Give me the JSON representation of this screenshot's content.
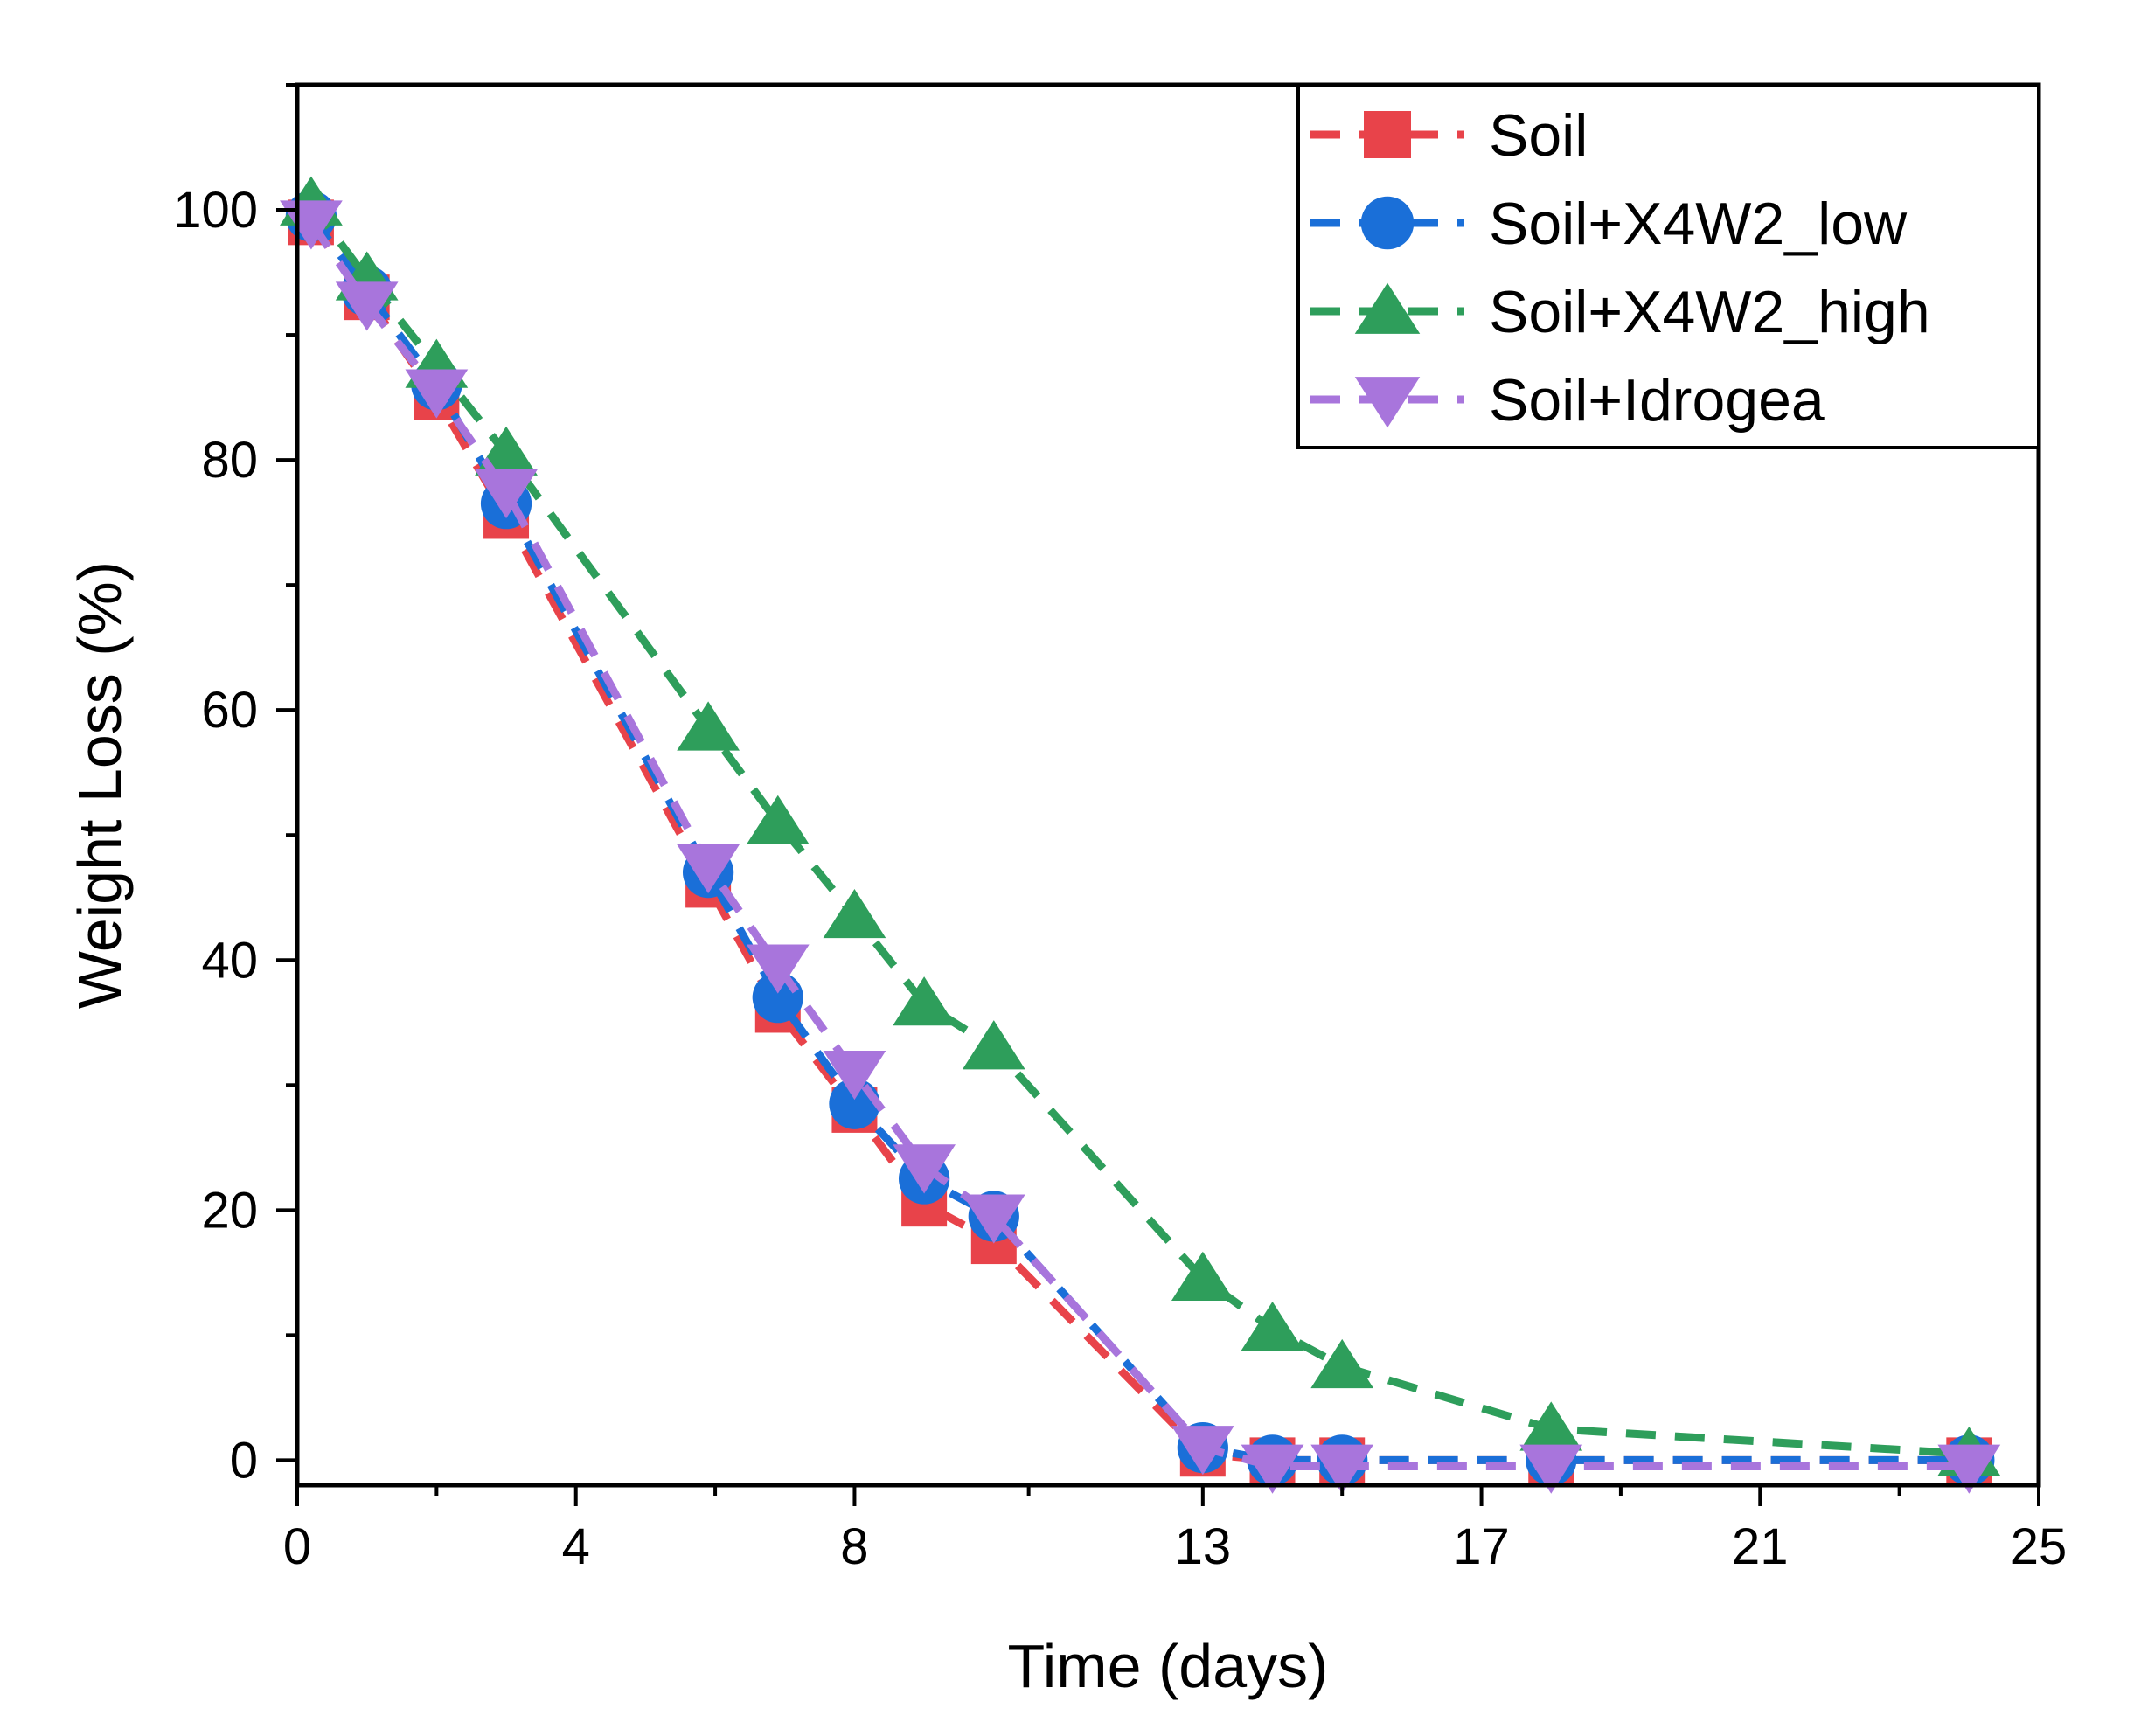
{
  "chart_data": {
    "type": "line",
    "title": "",
    "xlabel": "Time (days)",
    "ylabel": "Weight Loss (%)",
    "xlim": [
      0,
      25
    ],
    "ylim": [
      -2,
      110
    ],
    "x_ticks": [
      0,
      4,
      8,
      13,
      17,
      21,
      25
    ],
    "y_ticks": [
      0,
      20,
      40,
      60,
      80,
      100
    ],
    "grid": false,
    "legend_position": "top-right",
    "series": [
      {
        "name": "Soil",
        "color": "#e8434a",
        "marker": "square",
        "x": [
          0.2,
          1,
          2,
          3,
          5.9,
          6.9,
          8,
          9,
          10,
          13.0,
          14.0,
          15.0,
          18.0,
          24.0
        ],
        "y": [
          99,
          93,
          85,
          75.5,
          46,
          36,
          28,
          20.5,
          17.5,
          0.5,
          0,
          0,
          0,
          0
        ]
      },
      {
        "name": "Soil+X4W2_low",
        "color": "#1a6fd8",
        "marker": "circle",
        "x": [
          0.2,
          1,
          2,
          3,
          5.9,
          6.9,
          8,
          9,
          10,
          13.0,
          14.0,
          15.0,
          18.0,
          24.0
        ],
        "y": [
          99.5,
          93.5,
          86,
          76.5,
          47,
          37,
          28.5,
          22.5,
          19.5,
          1,
          0,
          0,
          0,
          0
        ]
      },
      {
        "name": "Soil+X4W2_high",
        "color": "#2e9e5b",
        "marker": "triangle-up",
        "x": [
          0.2,
          1,
          2,
          3,
          5.9,
          6.9,
          8,
          9,
          10,
          13.0,
          14.0,
          15.0,
          18.0,
          24.0
        ],
        "y": [
          100.5,
          94.5,
          87.5,
          80.5,
          58.5,
          51,
          43.5,
          36.5,
          33,
          14.5,
          10.5,
          7.5,
          2.5,
          0.5
        ]
      },
      {
        "name": "Soil+Idrogea",
        "color": "#a875dc",
        "marker": "triangle-down",
        "x": [
          0.2,
          1,
          2,
          3,
          5.9,
          6.9,
          8,
          9,
          10,
          13.0,
          14.0,
          15.0,
          18.0,
          24.0
        ],
        "y": [
          99,
          92.5,
          85.5,
          77.5,
          47.5,
          39.5,
          31,
          23.5,
          19.5,
          1,
          -0.5,
          -0.5,
          -0.5,
          -0.5
        ]
      }
    ]
  }
}
